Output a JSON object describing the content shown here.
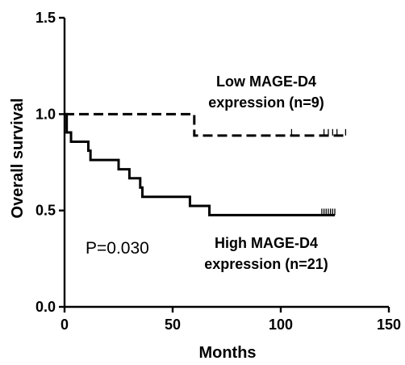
{
  "chart_data": {
    "type": "line",
    "subtype": "kaplan-meier",
    "title": "",
    "xlabel": "Months",
    "ylabel": "Overall survival",
    "xlim": [
      0,
      150
    ],
    "ylim": [
      0.0,
      1.5
    ],
    "x_ticks": [
      0,
      50,
      100,
      150
    ],
    "x_tick_labels": [
      "0",
      "50",
      "100",
      "150"
    ],
    "y_ticks": [
      0.0,
      0.5,
      1.0,
      1.5
    ],
    "y_tick_labels": [
      "0.0",
      "0.5",
      "1.0",
      "1.5"
    ],
    "grid": false,
    "series": [
      {
        "line_style": "dashed",
        "label_lines": [
          "Low MAGE-D4",
          "expression (n=9)"
        ],
        "steps": [
          {
            "x": 0,
            "y": 1.0
          },
          {
            "x": 60,
            "y": 0.889
          }
        ],
        "end_x": 131,
        "censored_x": [
          105,
          120,
          122,
          124,
          126,
          130
        ]
      },
      {
        "line_style": "solid",
        "label_lines": [
          "High MAGE-D4",
          "expression (n=21)"
        ],
        "steps": [
          {
            "x": 0,
            "y": 1.0
          },
          {
            "x": 1,
            "y": 0.905
          },
          {
            "x": 3,
            "y": 0.857
          },
          {
            "x": 11,
            "y": 0.81
          },
          {
            "x": 12,
            "y": 0.762
          },
          {
            "x": 25,
            "y": 0.714
          },
          {
            "x": 30,
            "y": 0.667
          },
          {
            "x": 35,
            "y": 0.619
          },
          {
            "x": 36,
            "y": 0.571
          },
          {
            "x": 58,
            "y": 0.524
          },
          {
            "x": 67,
            "y": 0.476
          }
        ],
        "end_x": 125,
        "censored_x": [
          119,
          120,
          121,
          122,
          123,
          124,
          125
        ]
      }
    ],
    "annotations": {
      "p_value": "P=0.030"
    }
  }
}
